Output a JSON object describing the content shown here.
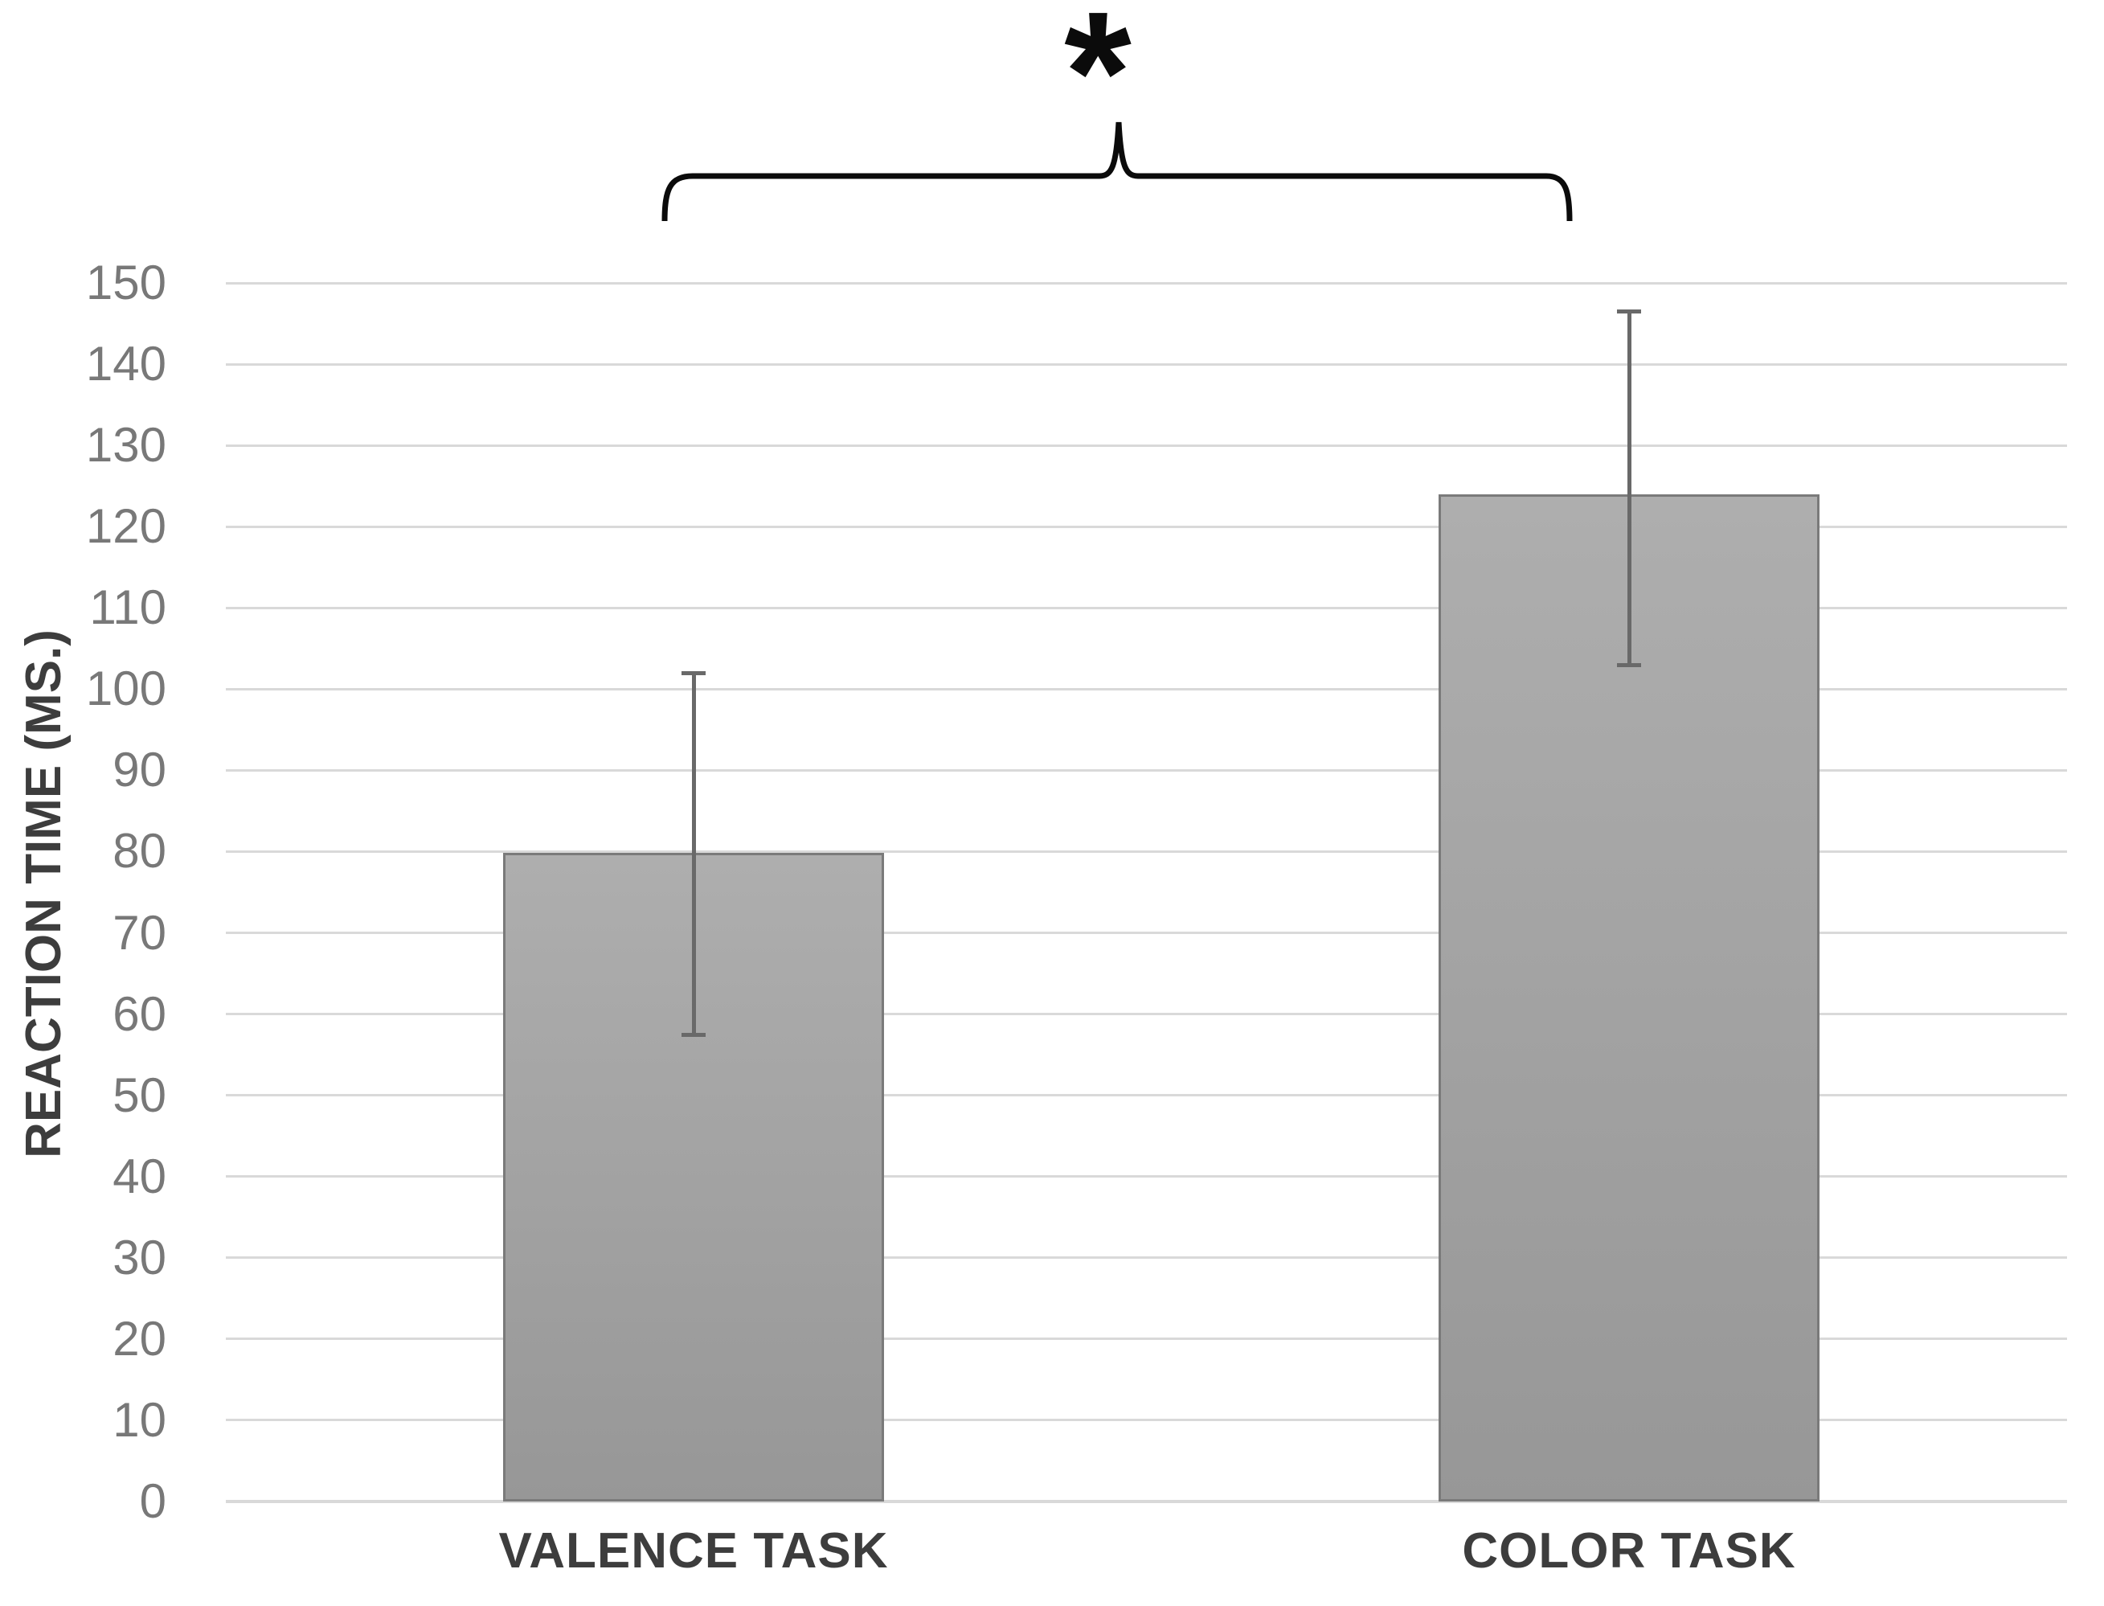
{
  "chart_data": {
    "type": "bar",
    "title": "",
    "categories": [
      "VALENCE TASK",
      "COLOR TASK"
    ],
    "values": [
      79.8,
      124
    ],
    "error_bars": {
      "upper": [
        102,
        146.5
      ],
      "lower": [
        57.5,
        103
      ]
    },
    "xlabel": "",
    "ylabel": "REACTION TIME (MS.)",
    "ylim": [
      0,
      150
    ],
    "yticks": [
      0,
      10,
      20,
      30,
      40,
      50,
      60,
      70,
      80,
      90,
      100,
      110,
      120,
      130,
      140,
      150
    ],
    "grid": "horizontal",
    "legend": "none",
    "annotation": {
      "symbol": "*",
      "type": "significance-bracket",
      "connects": [
        "VALENCE TASK",
        "COLOR TASK"
      ]
    },
    "colors": {
      "bar_fill_top": "#aeaeae",
      "bar_fill_bottom": "#979797",
      "bar_border": "#7a7a7a",
      "error_bar": "#696969",
      "gridline": "#d9d9d9",
      "tick_label": "#787878",
      "label": "#3d3d3d",
      "annotation": "#0b0b0b",
      "background": "#ffffff"
    }
  }
}
